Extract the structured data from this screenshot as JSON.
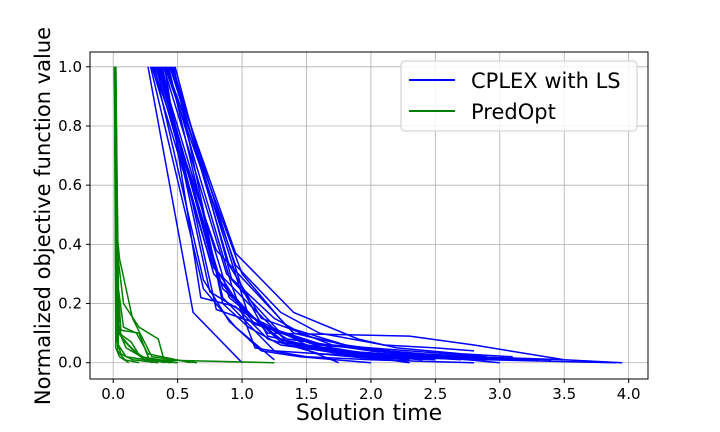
{
  "chart_data": {
    "type": "line",
    "title": "",
    "xlabel": "Solution time",
    "ylabel": "Normalized objective function value",
    "xlim": [
      -0.18,
      4.15
    ],
    "ylim": [
      -0.055,
      1.05
    ],
    "xticks": [
      "0.0",
      "0.5",
      "1.0",
      "1.5",
      "2.0",
      "2.5",
      "3.0",
      "3.5",
      "4.0"
    ],
    "yticks": [
      "0.0",
      "0.2",
      "0.4",
      "0.6",
      "0.8",
      "1.0"
    ],
    "grid": true,
    "legend_position": "top-right",
    "colors": {
      "CPLEX with LS": "#0000ff",
      "PredOpt": "#008000"
    },
    "series": [
      {
        "name": "CPLEX with LS",
        "color": "#0000ff",
        "lines": [
          [
            [
              0.27,
              1.0
            ],
            [
              0.62,
              0.17
            ],
            [
              1.0,
              0.0
            ]
          ],
          [
            [
              0.29,
              1.0
            ],
            [
              0.7,
              0.25
            ],
            [
              0.95,
              0.12
            ],
            [
              1.25,
              0.01
            ]
          ],
          [
            [
              0.3,
              1.0
            ],
            [
              0.75,
              0.35
            ],
            [
              1.0,
              0.18
            ],
            [
              1.3,
              0.08
            ],
            [
              1.75,
              0.0
            ]
          ],
          [
            [
              0.31,
              1.0
            ],
            [
              0.8,
              0.38
            ],
            [
              1.4,
              0.1
            ],
            [
              2.0,
              0.04
            ],
            [
              2.6,
              0.02
            ],
            [
              2.9,
              0.01
            ],
            [
              3.9,
              0.0
            ]
          ],
          [
            [
              0.33,
              1.0
            ],
            [
              0.78,
              0.3
            ],
            [
              1.2,
              0.1
            ],
            [
              2.3,
              0.09
            ],
            [
              2.8,
              0.06
            ],
            [
              3.5,
              0.01
            ],
            [
              3.95,
              0.0
            ]
          ],
          [
            [
              0.34,
              1.0
            ],
            [
              0.82,
              0.28
            ],
            [
              1.1,
              0.13
            ],
            [
              1.6,
              0.06
            ],
            [
              2.4,
              0.03
            ],
            [
              3.2,
              0.01
            ]
          ],
          [
            [
              0.35,
              1.0
            ],
            [
              0.85,
              0.25
            ],
            [
              1.3,
              0.07
            ],
            [
              1.8,
              0.03
            ],
            [
              2.3,
              0.0
            ]
          ],
          [
            [
              0.36,
              1.0
            ],
            [
              0.9,
              0.22
            ],
            [
              1.35,
              0.06
            ],
            [
              1.9,
              0.02
            ],
            [
              2.3,
              0.01
            ]
          ],
          [
            [
              0.37,
              1.0
            ],
            [
              0.75,
              0.24
            ],
            [
              1.35,
              0.08
            ],
            [
              2.0,
              0.04
            ],
            [
              2.5,
              0.02
            ],
            [
              3.0,
              0.0
            ]
          ],
          [
            [
              0.38,
              1.0
            ],
            [
              0.8,
              0.18
            ],
            [
              1.2,
              0.12
            ],
            [
              1.7,
              0.05
            ],
            [
              2.1,
              0.02
            ],
            [
              2.8,
              0.01
            ]
          ],
          [
            [
              0.39,
              1.0
            ],
            [
              0.88,
              0.3
            ],
            [
              1.25,
              0.15
            ],
            [
              1.5,
              0.09
            ],
            [
              2.0,
              0.04
            ],
            [
              2.6,
              0.02
            ],
            [
              3.3,
              0.01
            ]
          ],
          [
            [
              0.4,
              1.0
            ],
            [
              0.95,
              0.33
            ],
            [
              1.3,
              0.17
            ],
            [
              1.6,
              0.1
            ],
            [
              2.1,
              0.06
            ],
            [
              2.5,
              0.05
            ],
            [
              2.8,
              0.04
            ]
          ],
          [
            [
              0.41,
              1.0
            ],
            [
              1.0,
              0.3
            ],
            [
              1.35,
              0.12
            ],
            [
              1.8,
              0.06
            ],
            [
              2.3,
              0.03
            ],
            [
              2.8,
              0.02
            ],
            [
              3.5,
              0.01
            ]
          ],
          [
            [
              0.42,
              1.0
            ],
            [
              0.92,
              0.26
            ],
            [
              1.1,
              0.05
            ],
            [
              1.5,
              0.02
            ],
            [
              2.0,
              0.01
            ],
            [
              2.8,
              0.0
            ]
          ],
          [
            [
              0.43,
              1.0
            ],
            [
              0.85,
              0.22
            ],
            [
              1.25,
              0.04
            ],
            [
              1.6,
              0.03
            ],
            [
              2.2,
              0.02
            ],
            [
              3.0,
              0.01
            ]
          ],
          [
            [
              0.44,
              1.0
            ],
            [
              0.95,
              0.37
            ],
            [
              1.4,
              0.17
            ],
            [
              1.9,
              0.08
            ],
            [
              2.2,
              0.05
            ],
            [
              2.7,
              0.03
            ],
            [
              3.1,
              0.02
            ]
          ],
          [
            [
              0.45,
              1.0
            ],
            [
              0.9,
              0.33
            ],
            [
              1.15,
              0.15
            ],
            [
              1.4,
              0.11
            ],
            [
              1.7,
              0.06
            ],
            [
              2.3,
              0.04
            ],
            [
              2.9,
              0.02
            ]
          ],
          [
            [
              0.46,
              1.0
            ],
            [
              1.0,
              0.25
            ],
            [
              1.2,
              0.09
            ],
            [
              1.6,
              0.05
            ],
            [
              2.0,
              0.02
            ],
            [
              2.5,
              0.01
            ]
          ],
          [
            [
              0.47,
              1.0
            ],
            [
              0.85,
              0.2
            ],
            [
              1.05,
              0.12
            ],
            [
              1.3,
              0.06
            ],
            [
              1.8,
              0.03
            ],
            [
              2.4,
              0.01
            ]
          ],
          [
            [
              0.48,
              1.0
            ],
            [
              0.92,
              0.28
            ],
            [
              1.3,
              0.1
            ],
            [
              1.7,
              0.04
            ],
            [
              2.2,
              0.02
            ],
            [
              2.9,
              0.01
            ]
          ],
          [
            [
              0.4,
              1.0
            ],
            [
              0.68,
              0.22
            ],
            [
              0.95,
              0.19
            ],
            [
              1.2,
              0.08
            ],
            [
              1.6,
              0.03
            ],
            [
              2.1,
              0.01
            ]
          ],
          [
            [
              0.36,
              1.0
            ],
            [
              0.78,
              0.32
            ],
            [
              1.05,
              0.2
            ],
            [
              1.35,
              0.07
            ],
            [
              1.75,
              0.04
            ],
            [
              2.5,
              0.02
            ],
            [
              3.4,
              0.01
            ]
          ],
          [
            [
              0.32,
              1.0
            ],
            [
              0.7,
              0.28
            ],
            [
              0.9,
              0.14
            ],
            [
              1.15,
              0.04
            ],
            [
              1.45,
              0.02
            ],
            [
              2.0,
              0.0
            ]
          ],
          [
            [
              0.44,
              1.0
            ],
            [
              1.05,
              0.16
            ],
            [
              1.5,
              0.06
            ],
            [
              2.0,
              0.03
            ],
            [
              2.7,
              0.01
            ]
          ]
        ]
      },
      {
        "name": "PredOpt",
        "color": "#008000",
        "lines": [
          [
            [
              0.01,
              1.0
            ],
            [
              0.02,
              0.48
            ],
            [
              0.05,
              0.35
            ],
            [
              0.15,
              0.15
            ],
            [
              0.3,
              0.02
            ],
            [
              0.65,
              0.0
            ]
          ],
          [
            [
              0.015,
              1.0
            ],
            [
              0.03,
              0.38
            ],
            [
              0.08,
              0.2
            ],
            [
              0.2,
              0.12
            ],
            [
              0.35,
              0.08
            ],
            [
              0.4,
              0.0
            ]
          ],
          [
            [
              0.01,
              1.0
            ],
            [
              0.03,
              0.3
            ],
            [
              0.06,
              0.11
            ],
            [
              0.2,
              0.1
            ],
            [
              0.28,
              0.01
            ],
            [
              1.25,
              0.0
            ]
          ],
          [
            [
              0.02,
              1.0
            ],
            [
              0.04,
              0.25
            ],
            [
              0.08,
              0.12
            ],
            [
              0.18,
              0.1
            ],
            [
              0.27,
              0.03
            ],
            [
              0.6,
              0.0
            ]
          ],
          [
            [
              0.01,
              1.0
            ],
            [
              0.02,
              0.2
            ],
            [
              0.04,
              0.1
            ],
            [
              0.12,
              0.06
            ],
            [
              0.24,
              0.01
            ],
            [
              0.5,
              0.0
            ]
          ],
          [
            [
              0.02,
              1.0
            ],
            [
              0.03,
              0.15
            ],
            [
              0.07,
              0.08
            ],
            [
              0.16,
              0.04
            ],
            [
              0.3,
              0.0
            ]
          ],
          [
            [
              0.01,
              1.0
            ],
            [
              0.03,
              0.12
            ],
            [
              0.1,
              0.05
            ],
            [
              0.22,
              0.02
            ],
            [
              0.5,
              0.0
            ]
          ],
          [
            [
              0.015,
              1.0
            ],
            [
              0.025,
              0.08
            ],
            [
              0.06,
              0.03
            ],
            [
              0.15,
              0.01
            ],
            [
              0.35,
              0.0
            ]
          ],
          [
            [
              0.01,
              1.0
            ],
            [
              0.02,
              0.05
            ],
            [
              0.05,
              0.02
            ],
            [
              0.12,
              0.0
            ]
          ],
          [
            [
              0.02,
              1.0
            ],
            [
              0.04,
              0.06
            ],
            [
              0.1,
              0.02
            ],
            [
              0.25,
              0.01
            ],
            [
              0.45,
              0.0
            ]
          ],
          [
            [
              0.01,
              1.0
            ],
            [
              0.035,
              0.04
            ],
            [
              0.09,
              0.01
            ],
            [
              0.2,
              0.0
            ]
          ],
          [
            [
              0.015,
              1.0
            ],
            [
              0.045,
              0.1
            ],
            [
              0.14,
              0.07
            ],
            [
              0.21,
              0.02
            ],
            [
              0.4,
              0.0
            ]
          ]
        ]
      }
    ]
  }
}
